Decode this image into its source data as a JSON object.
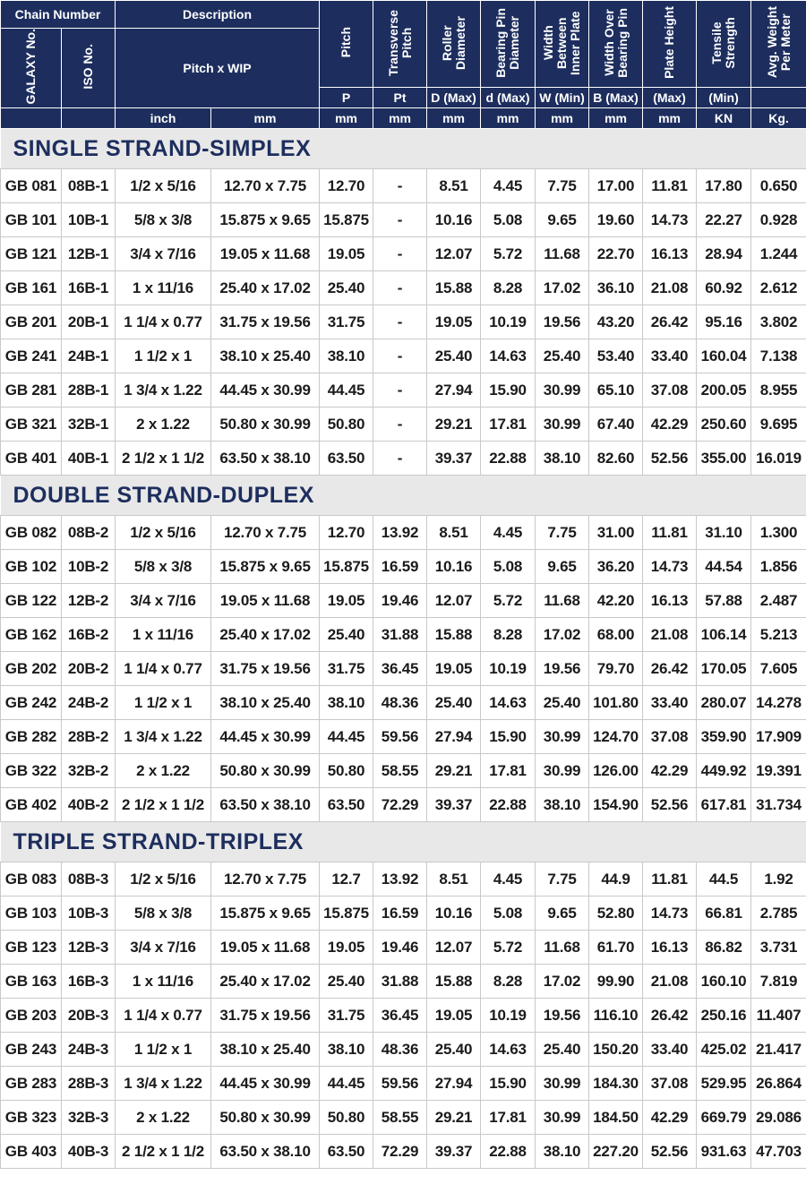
{
  "header": {
    "chain_number": "Chain Number",
    "description": "Description",
    "galaxy_no": "GALAXY No.",
    "iso_no": "ISO No.",
    "pitch_wip": "Pitch x WIP",
    "pitch": "Pitch",
    "transverse_pitch": "Transverse\nPitch",
    "roller_diameter": "Roller Diameter",
    "bearing_pin_diameter": "Bearing Pin\nDiameter",
    "width_between_inner_plate": "Width Between\nInner Plate",
    "width_over_bearing_pin": "Width Over\nBearing Pin",
    "plate_height": "Plate Height",
    "tensile_strength": "Tensile\nStrength",
    "avg_weight": "Avg. Weight\nPer Meter",
    "sym_p": "P",
    "sym_pt": "Pt",
    "sym_d_max": "D (Max)",
    "sym_dd_max": "d (Max)",
    "sym_w_min": "W (Min)",
    "sym_b_max": "B (Max)",
    "sym_max": "(Max)",
    "sym_min": "(Min)",
    "unit_inch": "inch",
    "unit_mm": "mm",
    "unit_kn": "KN",
    "unit_kg": "Kg."
  },
  "sections": [
    {
      "title": "SINGLE STRAND-SIMPLEX",
      "rows": [
        [
          "GB 081",
          "08B-1",
          "1/2 x 5/16",
          "12.70 x 7.75",
          "12.70",
          "-",
          "8.51",
          "4.45",
          "7.75",
          "17.00",
          "11.81",
          "17.80",
          "0.650"
        ],
        [
          "GB 101",
          "10B-1",
          "5/8 x 3/8",
          "15.875 x 9.65",
          "15.875",
          "-",
          "10.16",
          "5.08",
          "9.65",
          "19.60",
          "14.73",
          "22.27",
          "0.928"
        ],
        [
          "GB 121",
          "12B-1",
          "3/4 x 7/16",
          "19.05 x 11.68",
          "19.05",
          "-",
          "12.07",
          "5.72",
          "11.68",
          "22.70",
          "16.13",
          "28.94",
          "1.244"
        ],
        [
          "GB 161",
          "16B-1",
          "1 x 11/16",
          "25.40 x 17.02",
          "25.40",
          "-",
          "15.88",
          "8.28",
          "17.02",
          "36.10",
          "21.08",
          "60.92",
          "2.612"
        ],
        [
          "GB 201",
          "20B-1",
          "1 1/4 x 0.77",
          "31.75 x 19.56",
          "31.75",
          "-",
          "19.05",
          "10.19",
          "19.56",
          "43.20",
          "26.42",
          "95.16",
          "3.802"
        ],
        [
          "GB 241",
          "24B-1",
          "1 1/2 x 1",
          "38.10 x 25.40",
          "38.10",
          "-",
          "25.40",
          "14.63",
          "25.40",
          "53.40",
          "33.40",
          "160.04",
          "7.138"
        ],
        [
          "GB 281",
          "28B-1",
          "1 3/4 x 1.22",
          "44.45 x 30.99",
          "44.45",
          "-",
          "27.94",
          "15.90",
          "30.99",
          "65.10",
          "37.08",
          "200.05",
          "8.955"
        ],
        [
          "GB 321",
          "32B-1",
          "2 x 1.22",
          "50.80 x 30.99",
          "50.80",
          "-",
          "29.21",
          "17.81",
          "30.99",
          "67.40",
          "42.29",
          "250.60",
          "9.695"
        ],
        [
          "GB 401",
          "40B-1",
          "2 1/2 x 1 1/2",
          "63.50 x 38.10",
          "63.50",
          "-",
          "39.37",
          "22.88",
          "38.10",
          "82.60",
          "52.56",
          "355.00",
          "16.019"
        ]
      ]
    },
    {
      "title": "DOUBLE STRAND-DUPLEX",
      "rows": [
        [
          "GB 082",
          "08B-2",
          "1/2 x 5/16",
          "12.70 x 7.75",
          "12.70",
          "13.92",
          "8.51",
          "4.45",
          "7.75",
          "31.00",
          "11.81",
          "31.10",
          "1.300"
        ],
        [
          "GB 102",
          "10B-2",
          "5/8 x 3/8",
          "15.875 x 9.65",
          "15.875",
          "16.59",
          "10.16",
          "5.08",
          "9.65",
          "36.20",
          "14.73",
          "44.54",
          "1.856"
        ],
        [
          "GB 122",
          "12B-2",
          "3/4 x 7/16",
          "19.05 x 11.68",
          "19.05",
          "19.46",
          "12.07",
          "5.72",
          "11.68",
          "42.20",
          "16.13",
          "57.88",
          "2.487"
        ],
        [
          "GB 162",
          "16B-2",
          "1 x 11/16",
          "25.40 x 17.02",
          "25.40",
          "31.88",
          "15.88",
          "8.28",
          "17.02",
          "68.00",
          "21.08",
          "106.14",
          "5.213"
        ],
        [
          "GB 202",
          "20B-2",
          "1 1/4 x 0.77",
          "31.75 x 19.56",
          "31.75",
          "36.45",
          "19.05",
          "10.19",
          "19.56",
          "79.70",
          "26.42",
          "170.05",
          "7.605"
        ],
        [
          "GB 242",
          "24B-2",
          "1 1/2 x 1",
          "38.10 x 25.40",
          "38.10",
          "48.36",
          "25.40",
          "14.63",
          "25.40",
          "101.80",
          "33.40",
          "280.07",
          "14.278"
        ],
        [
          "GB 282",
          "28B-2",
          "1 3/4 x 1.22",
          "44.45 x 30.99",
          "44.45",
          "59.56",
          "27.94",
          "15.90",
          "30.99",
          "124.70",
          "37.08",
          "359.90",
          "17.909"
        ],
        [
          "GB 322",
          "32B-2",
          "2 x 1.22",
          "50.80 x 30.99",
          "50.80",
          "58.55",
          "29.21",
          "17.81",
          "30.99",
          "126.00",
          "42.29",
          "449.92",
          "19.391"
        ],
        [
          "GB 402",
          "40B-2",
          "2 1/2 x 1 1/2",
          "63.50 x 38.10",
          "63.50",
          "72.29",
          "39.37",
          "22.88",
          "38.10",
          "154.90",
          "52.56",
          "617.81",
          "31.734"
        ]
      ]
    },
    {
      "title": "TRIPLE STRAND-TRIPLEX",
      "rows": [
        [
          "GB 083",
          "08B-3",
          "1/2 x 5/16",
          "12.70 x 7.75",
          "12.7",
          "13.92",
          "8.51",
          "4.45",
          "7.75",
          "44.9",
          "11.81",
          "44.5",
          "1.92"
        ],
        [
          "GB 103",
          "10B-3",
          "5/8 x 3/8",
          "15.875 x 9.65",
          "15.875",
          "16.59",
          "10.16",
          "5.08",
          "9.65",
          "52.80",
          "14.73",
          "66.81",
          "2.785"
        ],
        [
          "GB 123",
          "12B-3",
          "3/4 x 7/16",
          "19.05 x 11.68",
          "19.05",
          "19.46",
          "12.07",
          "5.72",
          "11.68",
          "61.70",
          "16.13",
          "86.82",
          "3.731"
        ],
        [
          "GB 163",
          "16B-3",
          "1 x 11/16",
          "25.40 x 17.02",
          "25.40",
          "31.88",
          "15.88",
          "8.28",
          "17.02",
          "99.90",
          "21.08",
          "160.10",
          "7.819"
        ],
        [
          "GB 203",
          "20B-3",
          "1 1/4 x 0.77",
          "31.75 x 19.56",
          "31.75",
          "36.45",
          "19.05",
          "10.19",
          "19.56",
          "116.10",
          "26.42",
          "250.16",
          "11.407"
        ],
        [
          "GB 243",
          "24B-3",
          "1 1/2 x 1",
          "38.10 x 25.40",
          "38.10",
          "48.36",
          "25.40",
          "14.63",
          "25.40",
          "150.20",
          "33.40",
          "425.02",
          "21.417"
        ],
        [
          "GB 283",
          "28B-3",
          "1 3/4 x 1.22",
          "44.45 x 30.99",
          "44.45",
          "59.56",
          "27.94",
          "15.90",
          "30.99",
          "184.30",
          "37.08",
          "529.95",
          "26.864"
        ],
        [
          "GB 323",
          "32B-3",
          "2 x 1.22",
          "50.80 x 30.99",
          "50.80",
          "58.55",
          "29.21",
          "17.81",
          "30.99",
          "184.50",
          "42.29",
          "669.79",
          "29.086"
        ],
        [
          "GB 403",
          "40B-3",
          "2 1/2 x 1 1/2",
          "63.50 x 38.10",
          "63.50",
          "72.29",
          "39.37",
          "22.88",
          "38.10",
          "227.20",
          "52.56",
          "931.63",
          "47.703"
        ]
      ]
    }
  ]
}
